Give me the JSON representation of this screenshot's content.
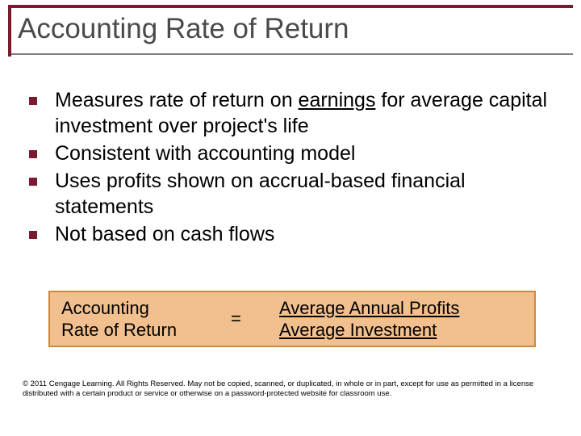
{
  "slide": {
    "title": "Accounting Rate of Return",
    "title_color": "#4a4a4a",
    "title_fontsize": 35,
    "frame_color": "#7a1a2e",
    "underline_color": "#808080",
    "background_color": "#ffffff",
    "bullets": [
      {
        "pre": "Measures rate of return on ",
        "emph": "earnings",
        "post": " for average capital investment over project's life"
      },
      {
        "pre": "Consistent with accounting model",
        "emph": "",
        "post": ""
      },
      {
        "pre": "Uses profits shown on accrual-based financial statements",
        "emph": "",
        "post": ""
      },
      {
        "pre": "Not based on cash flows",
        "emph": "",
        "post": ""
      }
    ],
    "bullet_color": "#7a1a2e",
    "bullet_fontsize": 25,
    "formula": {
      "left_line1": "Accounting",
      "left_line2": "Rate of Return",
      "eq": "=",
      "right_line1": "Average Annual Profits",
      "right_line2": "Average Investment",
      "box_fill": "#f2c08f",
      "box_border": "#cc8a3a",
      "fontsize": 22
    },
    "footer": "© 2011 Cengage Learning.  All Rights Reserved.  May not be copied, scanned, or duplicated, in whole or in part, except for use as permitted in a license distributed with a certain product or service or otherwise on a password-protected website for classroom use.",
    "footer_fontsize": 9.5
  }
}
